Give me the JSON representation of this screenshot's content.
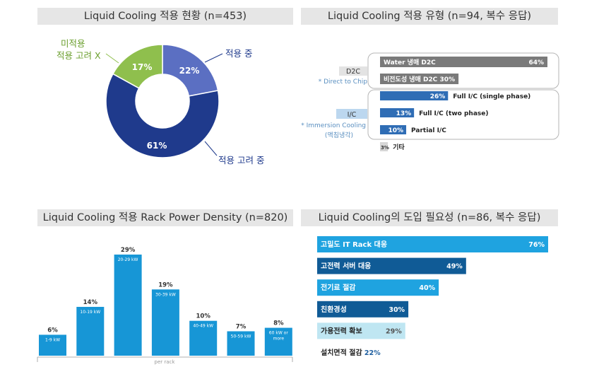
{
  "panels": {
    "p1_title": "Liquid Cooling 적용 현황 (n=453)",
    "p2_title": "Liquid Cooling 적용 유형 (n=94, 복수 응답)",
    "p3_title": "Liquid Cooling 적용 Rack Power Density (n=820)",
    "p4_title": "Liquid Cooling의 도입 필요성 (n=86, 복수 응답)"
  },
  "colors": {
    "dark_navy": "#1f3a8c",
    "mid_blue": "#5b6fc2",
    "green": "#8fbf4d",
    "gray_bar": "#7a7a7a",
    "type_blue": "#2f6db5",
    "rack_blue": "#1796d6",
    "need_bright": "#1fa3e0",
    "need_dark": "#105b96",
    "need_light": "#bfe6f2"
  },
  "chart_data": [
    {
      "type": "pie",
      "title": "Liquid Cooling 적용 현황 (n=453)",
      "slices": [
        {
          "label": "적용 중",
          "value": 22,
          "value_label": "22%",
          "color": "#5b6fc2"
        },
        {
          "label": "적용 고려 중",
          "value": 61,
          "value_label": "61%",
          "color": "#1f3a8c"
        },
        {
          "label_line1": "미적용",
          "label_line2": "적용 고려 X",
          "value": 17,
          "value_label": "17%",
          "color": "#8fbf4d"
        }
      ]
    },
    {
      "type": "bar",
      "title": "Liquid Cooling 적용 유형 (n=94, 복수 응답)",
      "groups": [
        {
          "name": "D2C",
          "note": "* Direct to Chip",
          "items": [
            {
              "label": "Water 냉매 D2C",
              "value": 64,
              "value_label": "64%",
              "style": "dark"
            },
            {
              "label": "비전도성 냉매 D2C",
              "value": 30,
              "value_label": "30%",
              "style": "dark"
            }
          ]
        },
        {
          "name": "I/C",
          "note": "* Immersion Cooling",
          "note2": "(액침냉각)",
          "items": [
            {
              "label": "Full I/C  (single phase)",
              "value": 26,
              "value_label": "26%",
              "style": "blue"
            },
            {
              "label": "Full I/C  (two phase)",
              "value": 13,
              "value_label": "13%",
              "style": "blue"
            },
            {
              "label": "Partial I/C",
              "value": 10,
              "value_label": "10%",
              "style": "blue"
            }
          ]
        },
        {
          "name": "",
          "items": [
            {
              "label": "기타",
              "value": 3,
              "value_label": "3%",
              "style": "light"
            }
          ]
        }
      ]
    },
    {
      "type": "bar",
      "title": "Liquid Cooling 적용 Rack Power Density (n=820)",
      "categories": [
        "1-9 kW",
        "10-19 kW",
        "20-29 kW",
        "30-39 kW",
        "40-49 kW",
        "50-59 kW",
        "60 kW or more"
      ],
      "category_lines": [
        [
          "1-9 kW"
        ],
        [
          "10-19 kW"
        ],
        [
          "20-29 kW"
        ],
        [
          "30-39 kW"
        ],
        [
          "40-49 kW"
        ],
        [
          "50-59 kW"
        ],
        [
          "60 kW or",
          "more"
        ]
      ],
      "values": [
        6,
        14,
        29,
        19,
        10,
        7,
        8
      ],
      "value_labels": [
        "6%",
        "14%",
        "29%",
        "19%",
        "10%",
        "7%",
        "8%"
      ],
      "xlabel": "per rack"
    },
    {
      "type": "bar",
      "title": "Liquid Cooling의 도입 필요성 (n=86, 복수 응답)",
      "orientation": "horizontal",
      "categories": [
        "고밀도 IT Rack 대응",
        "고전력 서버 대응",
        "전기료 절감",
        "친환경성",
        "가용전력 확보",
        "설치면적 절감"
      ],
      "values": [
        76,
        49,
        40,
        30,
        29,
        22
      ],
      "value_labels": [
        "76%",
        "49%",
        "40%",
        "30%",
        "29%",
        "22%"
      ],
      "styles": [
        "bright",
        "dark",
        "bright",
        "dark",
        "light",
        "white"
      ]
    }
  ]
}
